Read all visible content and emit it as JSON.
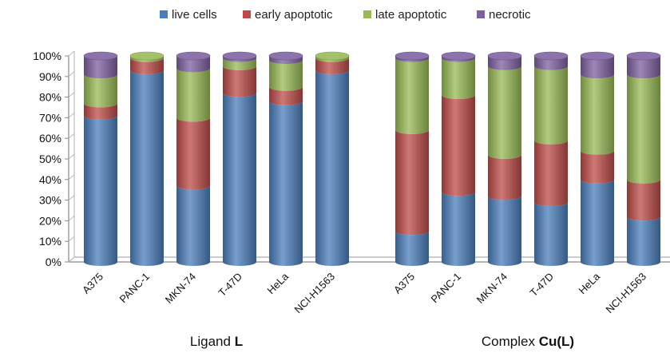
{
  "chart_data": {
    "type": "bar",
    "stacked": true,
    "style": "3d-cylinder",
    "legend_position": "top",
    "grid": false,
    "ylim": [
      0,
      100
    ],
    "yticks": [
      "0%",
      "10%",
      "20%",
      "30%",
      "40%",
      "50%",
      "60%",
      "70%",
      "80%",
      "90%",
      "100%"
    ],
    "series": [
      {
        "name": "live cells",
        "color": "#4a7ebb"
      },
      {
        "name": "early apoptotic",
        "color": "#be4b48"
      },
      {
        "name": "late apoptotic",
        "color": "#98b954"
      },
      {
        "name": "necrotic",
        "color": "#7d60a0"
      }
    ],
    "groups": [
      {
        "title": "Ligand",
        "title_bold": "L",
        "categories": [
          "A375",
          "PANC-1",
          "MKN-74",
          "T-47D",
          "HeLa",
          "NCI-H1563"
        ],
        "values": {
          "live cells": [
            71,
            93,
            37,
            82,
            78,
            93
          ],
          "early apoptotic": [
            6,
            6,
            33,
            13,
            7,
            6
          ],
          "late apoptotic": [
            14,
            1,
            24,
            4,
            13,
            1
          ],
          "necrotic": [
            9,
            0,
            6,
            1,
            2,
            0
          ]
        }
      },
      {
        "title": "Complex",
        "title_bold": "Cu(L)",
        "categories": [
          "A375",
          "PANC-1",
          "MKN-74",
          "T-47D",
          "HeLa",
          "NCI-H1563"
        ],
        "values": {
          "live cells": [
            15,
            34,
            32,
            29,
            40,
            22
          ],
          "early apoptotic": [
            49,
            47,
            20,
            30,
            14,
            18
          ],
          "late apoptotic": [
            35,
            18,
            43,
            36,
            37,
            51
          ],
          "necrotic": [
            1,
            1,
            5,
            5,
            9,
            9
          ]
        }
      }
    ]
  }
}
